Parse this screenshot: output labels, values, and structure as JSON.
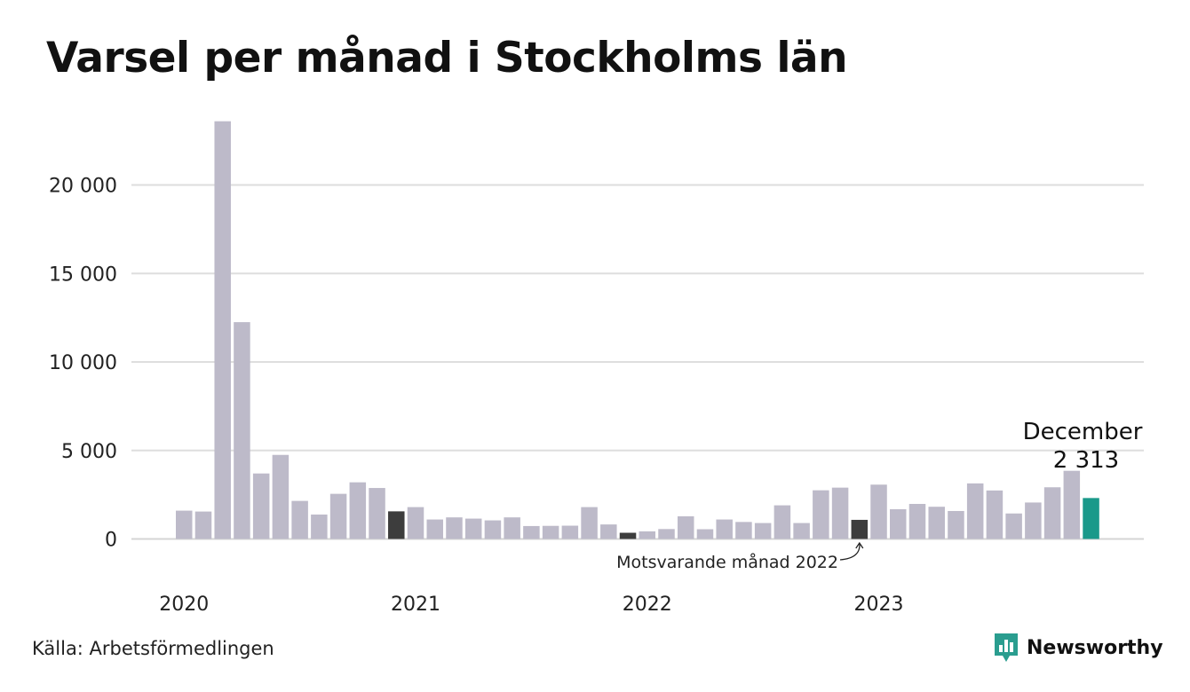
{
  "title": "Varsel per månad i Stockholms län",
  "source": "Källa: Arbetsförmedlingen",
  "brand": {
    "name": "Newsworthy",
    "icon": "bar-chart-speech-icon",
    "color": "#2a9d8f"
  },
  "colors": {
    "bar": "#bdbac9",
    "highlight": "#3d3d3d",
    "current": "#1a998a",
    "grid": "#dedede"
  },
  "annotations": {
    "current_month": "December",
    "current_value": "2 313",
    "comparison": "Motsvarande månad 2022"
  },
  "chart_data": {
    "type": "bar",
    "title": "Varsel per månad i Stockholms län",
    "xlabel": "",
    "ylabel": "",
    "ylim": [
      0,
      24000
    ],
    "yticks": [
      0,
      5000,
      10000,
      15000,
      20000
    ],
    "ytick_labels": [
      "0",
      "5 000",
      "10 000",
      "15 000",
      "20 000"
    ],
    "xtick_labels": [
      {
        "label": "2020",
        "index": 0
      },
      {
        "label": "2021",
        "index": 12
      },
      {
        "label": "2022",
        "index": 24
      },
      {
        "label": "2023",
        "index": 36
      }
    ],
    "grid": true,
    "categories": [
      "2020-01",
      "2020-02",
      "2020-03",
      "2020-04",
      "2020-05",
      "2020-06",
      "2020-07",
      "2020-08",
      "2020-09",
      "2020-10",
      "2020-11",
      "2020-12",
      "2021-01",
      "2021-02",
      "2021-03",
      "2021-04",
      "2021-05",
      "2021-06",
      "2021-07",
      "2021-08",
      "2021-09",
      "2021-10",
      "2021-11",
      "2021-12",
      "2022-01",
      "2022-02",
      "2022-03",
      "2022-04",
      "2022-05",
      "2022-06",
      "2022-07",
      "2022-08",
      "2022-09",
      "2022-10",
      "2022-11",
      "2022-12",
      "2023-01",
      "2023-02",
      "2023-03",
      "2023-04",
      "2023-05",
      "2023-06",
      "2023-07",
      "2023-08",
      "2023-09",
      "2023-10",
      "2023-11",
      "2023-12"
    ],
    "values": [
      1600,
      1550,
      23600,
      12250,
      3700,
      4750,
      2150,
      1380,
      2550,
      3200,
      2880,
      1560,
      1800,
      1100,
      1220,
      1150,
      1050,
      1220,
      730,
      740,
      750,
      1800,
      820,
      350,
      430,
      560,
      1280,
      550,
      1100,
      960,
      900,
      1900,
      900,
      2750,
      2900,
      1080,
      3070,
      1680,
      1980,
      1820,
      1580,
      3140,
      2740,
      1440,
      2060,
      2920,
      3850,
      2313
    ],
    "highlights": [
      {
        "index": 11,
        "role": "december"
      },
      {
        "index": 23,
        "role": "december"
      },
      {
        "index": 35,
        "role": "comparison"
      },
      {
        "index": 47,
        "role": "current"
      }
    ]
  }
}
